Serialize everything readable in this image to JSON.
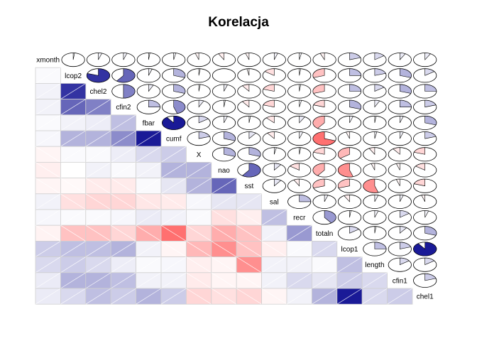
{
  "chart_data": {
    "type": "heatmap",
    "title": "Korelacja",
    "variables": [
      "xmonth",
      "lcop2",
      "chel2",
      "cfin2",
      "fbar",
      "cumf",
      "X",
      "nao",
      "sst",
      "sal",
      "recr",
      "totaln",
      "lcop1",
      "length",
      "cfin1",
      "chel1"
    ],
    "lower_panel": "shade",
    "upper_panel": "pie",
    "value_range": [
      -1,
      1
    ],
    "colors": {
      "positive": "#00008B",
      "negative": "#FF3333",
      "zero": "#FFFFFF"
    },
    "correlation_matrix": [
      [
        1.0,
        0.02,
        0.05,
        0.05,
        0.02,
        0.03,
        -0.05,
        -0.08,
        -0.05,
        0.05,
        0.03,
        -0.06,
        0.2,
        0.15,
        0.08,
        0.08
      ],
      [
        0.02,
        1.0,
        0.8,
        0.6,
        0.05,
        0.3,
        0.02,
        0.0,
        -0.03,
        -0.15,
        0.02,
        -0.3,
        0.25,
        0.2,
        0.3,
        0.15
      ],
      [
        0.05,
        0.8,
        1.0,
        0.5,
        0.07,
        0.3,
        0.02,
        0.05,
        -0.1,
        -0.2,
        0.02,
        -0.3,
        0.25,
        0.15,
        0.3,
        0.25
      ],
      [
        0.05,
        0.6,
        0.5,
        1.0,
        0.25,
        0.45,
        0.07,
        0.02,
        -0.1,
        -0.2,
        0.03,
        -0.2,
        0.3,
        0.07,
        0.25,
        0.2
      ],
      [
        0.02,
        0.05,
        0.07,
        0.25,
        1.0,
        0.9,
        0.15,
        0.05,
        0.02,
        -0.12,
        0.08,
        -0.4,
        0.05,
        0.02,
        0.05,
        0.3
      ],
      [
        0.03,
        0.3,
        0.3,
        0.45,
        0.9,
        1.0,
        0.2,
        0.3,
        0.1,
        -0.1,
        0.05,
        -0.7,
        -0.05,
        0.03,
        0.05,
        0.2
      ],
      [
        -0.05,
        0.02,
        0.02,
        0.07,
        0.15,
        0.2,
        1.0,
        0.3,
        0.3,
        0.03,
        0.02,
        -0.2,
        -0.35,
        -0.08,
        -0.1,
        -0.2
      ],
      [
        -0.08,
        0.0,
        0.05,
        0.02,
        0.05,
        0.3,
        0.3,
        1.0,
        0.6,
        0.1,
        -0.15,
        -0.4,
        -0.55,
        -0.05,
        -0.05,
        -0.15
      ],
      [
        -0.05,
        -0.03,
        -0.1,
        -0.1,
        0.02,
        0.1,
        0.3,
        0.6,
        1.0,
        0.1,
        -0.08,
        -0.3,
        -0.3,
        -0.55,
        -0.05,
        -0.2
      ],
      [
        0.05,
        -0.15,
        -0.2,
        -0.2,
        -0.12,
        -0.1,
        0.03,
        0.1,
        0.1,
        1.0,
        0.25,
        0.05,
        -0.08,
        0.05,
        0.05,
        -0.05
      ],
      [
        0.03,
        0.02,
        0.02,
        0.03,
        0.08,
        0.05,
        0.02,
        -0.15,
        -0.08,
        0.25,
        1.0,
        0.4,
        0.02,
        0.05,
        0.15,
        0.05
      ],
      [
        -0.06,
        -0.3,
        -0.3,
        -0.2,
        -0.4,
        -0.7,
        -0.2,
        -0.4,
        -0.3,
        0.05,
        0.4,
        1.0,
        0.15,
        0.02,
        0.1,
        0.3
      ],
      [
        0.2,
        0.25,
        0.25,
        0.3,
        0.05,
        -0.05,
        -0.35,
        -0.55,
        -0.3,
        -0.08,
        0.02,
        0.15,
        1.0,
        0.25,
        0.2,
        0.9
      ],
      [
        0.15,
        0.2,
        0.15,
        0.07,
        0.02,
        0.03,
        -0.08,
        -0.05,
        -0.55,
        0.05,
        0.05,
        0.02,
        0.25,
        1.0,
        0.15,
        0.15
      ],
      [
        0.08,
        0.3,
        0.3,
        0.25,
        0.05,
        0.05,
        -0.1,
        -0.05,
        -0.05,
        0.05,
        0.15,
        0.1,
        0.2,
        0.15,
        1.0,
        0.2
      ],
      [
        0.08,
        0.15,
        0.25,
        0.2,
        0.3,
        0.2,
        -0.2,
        -0.15,
        -0.2,
        -0.05,
        0.05,
        0.3,
        0.9,
        0.15,
        0.2,
        1.0
      ]
    ]
  }
}
